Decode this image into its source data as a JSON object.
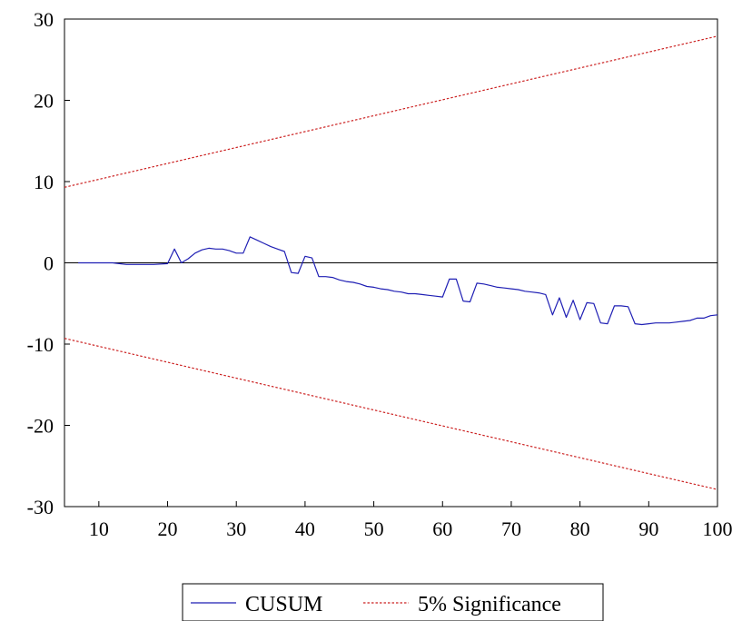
{
  "chart_data": {
    "type": "line",
    "xlim": [
      5,
      100
    ],
    "ylim": [
      -30,
      30
    ],
    "x_ticks": [
      10,
      20,
      30,
      40,
      50,
      60,
      70,
      80,
      90,
      100
    ],
    "y_ticks": [
      30,
      20,
      10,
      0,
      -10,
      -20,
      -30
    ],
    "x_tick_labels": [
      "10",
      "20",
      "30",
      "40",
      "50",
      "60",
      "70",
      "80",
      "90",
      "100"
    ],
    "y_tick_labels": [
      "30",
      "20",
      "10",
      "0",
      "-10",
      "-20",
      "-30"
    ],
    "zero_line": true,
    "grid": false,
    "legend_position": "bottom",
    "series": [
      {
        "name": "CUSUM",
        "color": "#1f1fb4",
        "style": "solid",
        "x": [
          7,
          12,
          14,
          16,
          18,
          20,
          21,
          22,
          23,
          24,
          25,
          26,
          27,
          28,
          29,
          30,
          31,
          32,
          33,
          34,
          35,
          36,
          37,
          38,
          39,
          40,
          41,
          42,
          43,
          44,
          45,
          46,
          47,
          48,
          49,
          50,
          51,
          52,
          53,
          54,
          55,
          56,
          57,
          58,
          59,
          60,
          61,
          62,
          63,
          64,
          65,
          66,
          67,
          68,
          69,
          70,
          71,
          72,
          73,
          74,
          75,
          76,
          77,
          78,
          79,
          80,
          81,
          82,
          83,
          84,
          85,
          86,
          87,
          88,
          89,
          90,
          91,
          92,
          93,
          94,
          95,
          96,
          97,
          98,
          99,
          100
        ],
        "y": [
          0.0,
          0.0,
          -0.2,
          -0.2,
          -0.2,
          -0.1,
          1.7,
          0.0,
          0.5,
          1.2,
          1.6,
          1.8,
          1.7,
          1.7,
          1.5,
          1.2,
          1.2,
          3.2,
          2.8,
          2.4,
          2.0,
          1.7,
          1.4,
          -1.2,
          -1.3,
          0.8,
          0.6,
          -1.7,
          -1.7,
          -1.8,
          -2.1,
          -2.3,
          -2.4,
          -2.6,
          -2.9,
          -3.0,
          -3.2,
          -3.3,
          -3.5,
          -3.6,
          -3.8,
          -3.8,
          -3.9,
          -4.0,
          -4.1,
          -4.2,
          -2.0,
          -2.0,
          -4.7,
          -4.8,
          -2.5,
          -2.6,
          -2.8,
          -3.0,
          -3.1,
          -3.2,
          -3.3,
          -3.5,
          -3.6,
          -3.7,
          -3.9,
          -6.4,
          -4.3,
          -6.7,
          -4.6,
          -7.0,
          -4.9,
          -5.0,
          -7.4,
          -7.5,
          -5.3,
          -5.3,
          -5.4,
          -7.5,
          -7.6,
          -7.5,
          -7.4,
          -7.4,
          -7.4,
          -7.3,
          -7.2,
          -7.1,
          -6.8,
          -6.8,
          -6.5,
          -6.4
        ]
      },
      {
        "name": "5% Significance",
        "color": "#cc2222",
        "style": "dashed",
        "x": [
          5,
          100
        ],
        "y": [
          9.3,
          27.9
        ]
      },
      {
        "name": "",
        "color": "#cc2222",
        "style": "dashed",
        "x": [
          5,
          100
        ],
        "y": [
          -9.3,
          -27.9
        ]
      }
    ],
    "legend": [
      "CUSUM",
      "5% Significance"
    ]
  }
}
